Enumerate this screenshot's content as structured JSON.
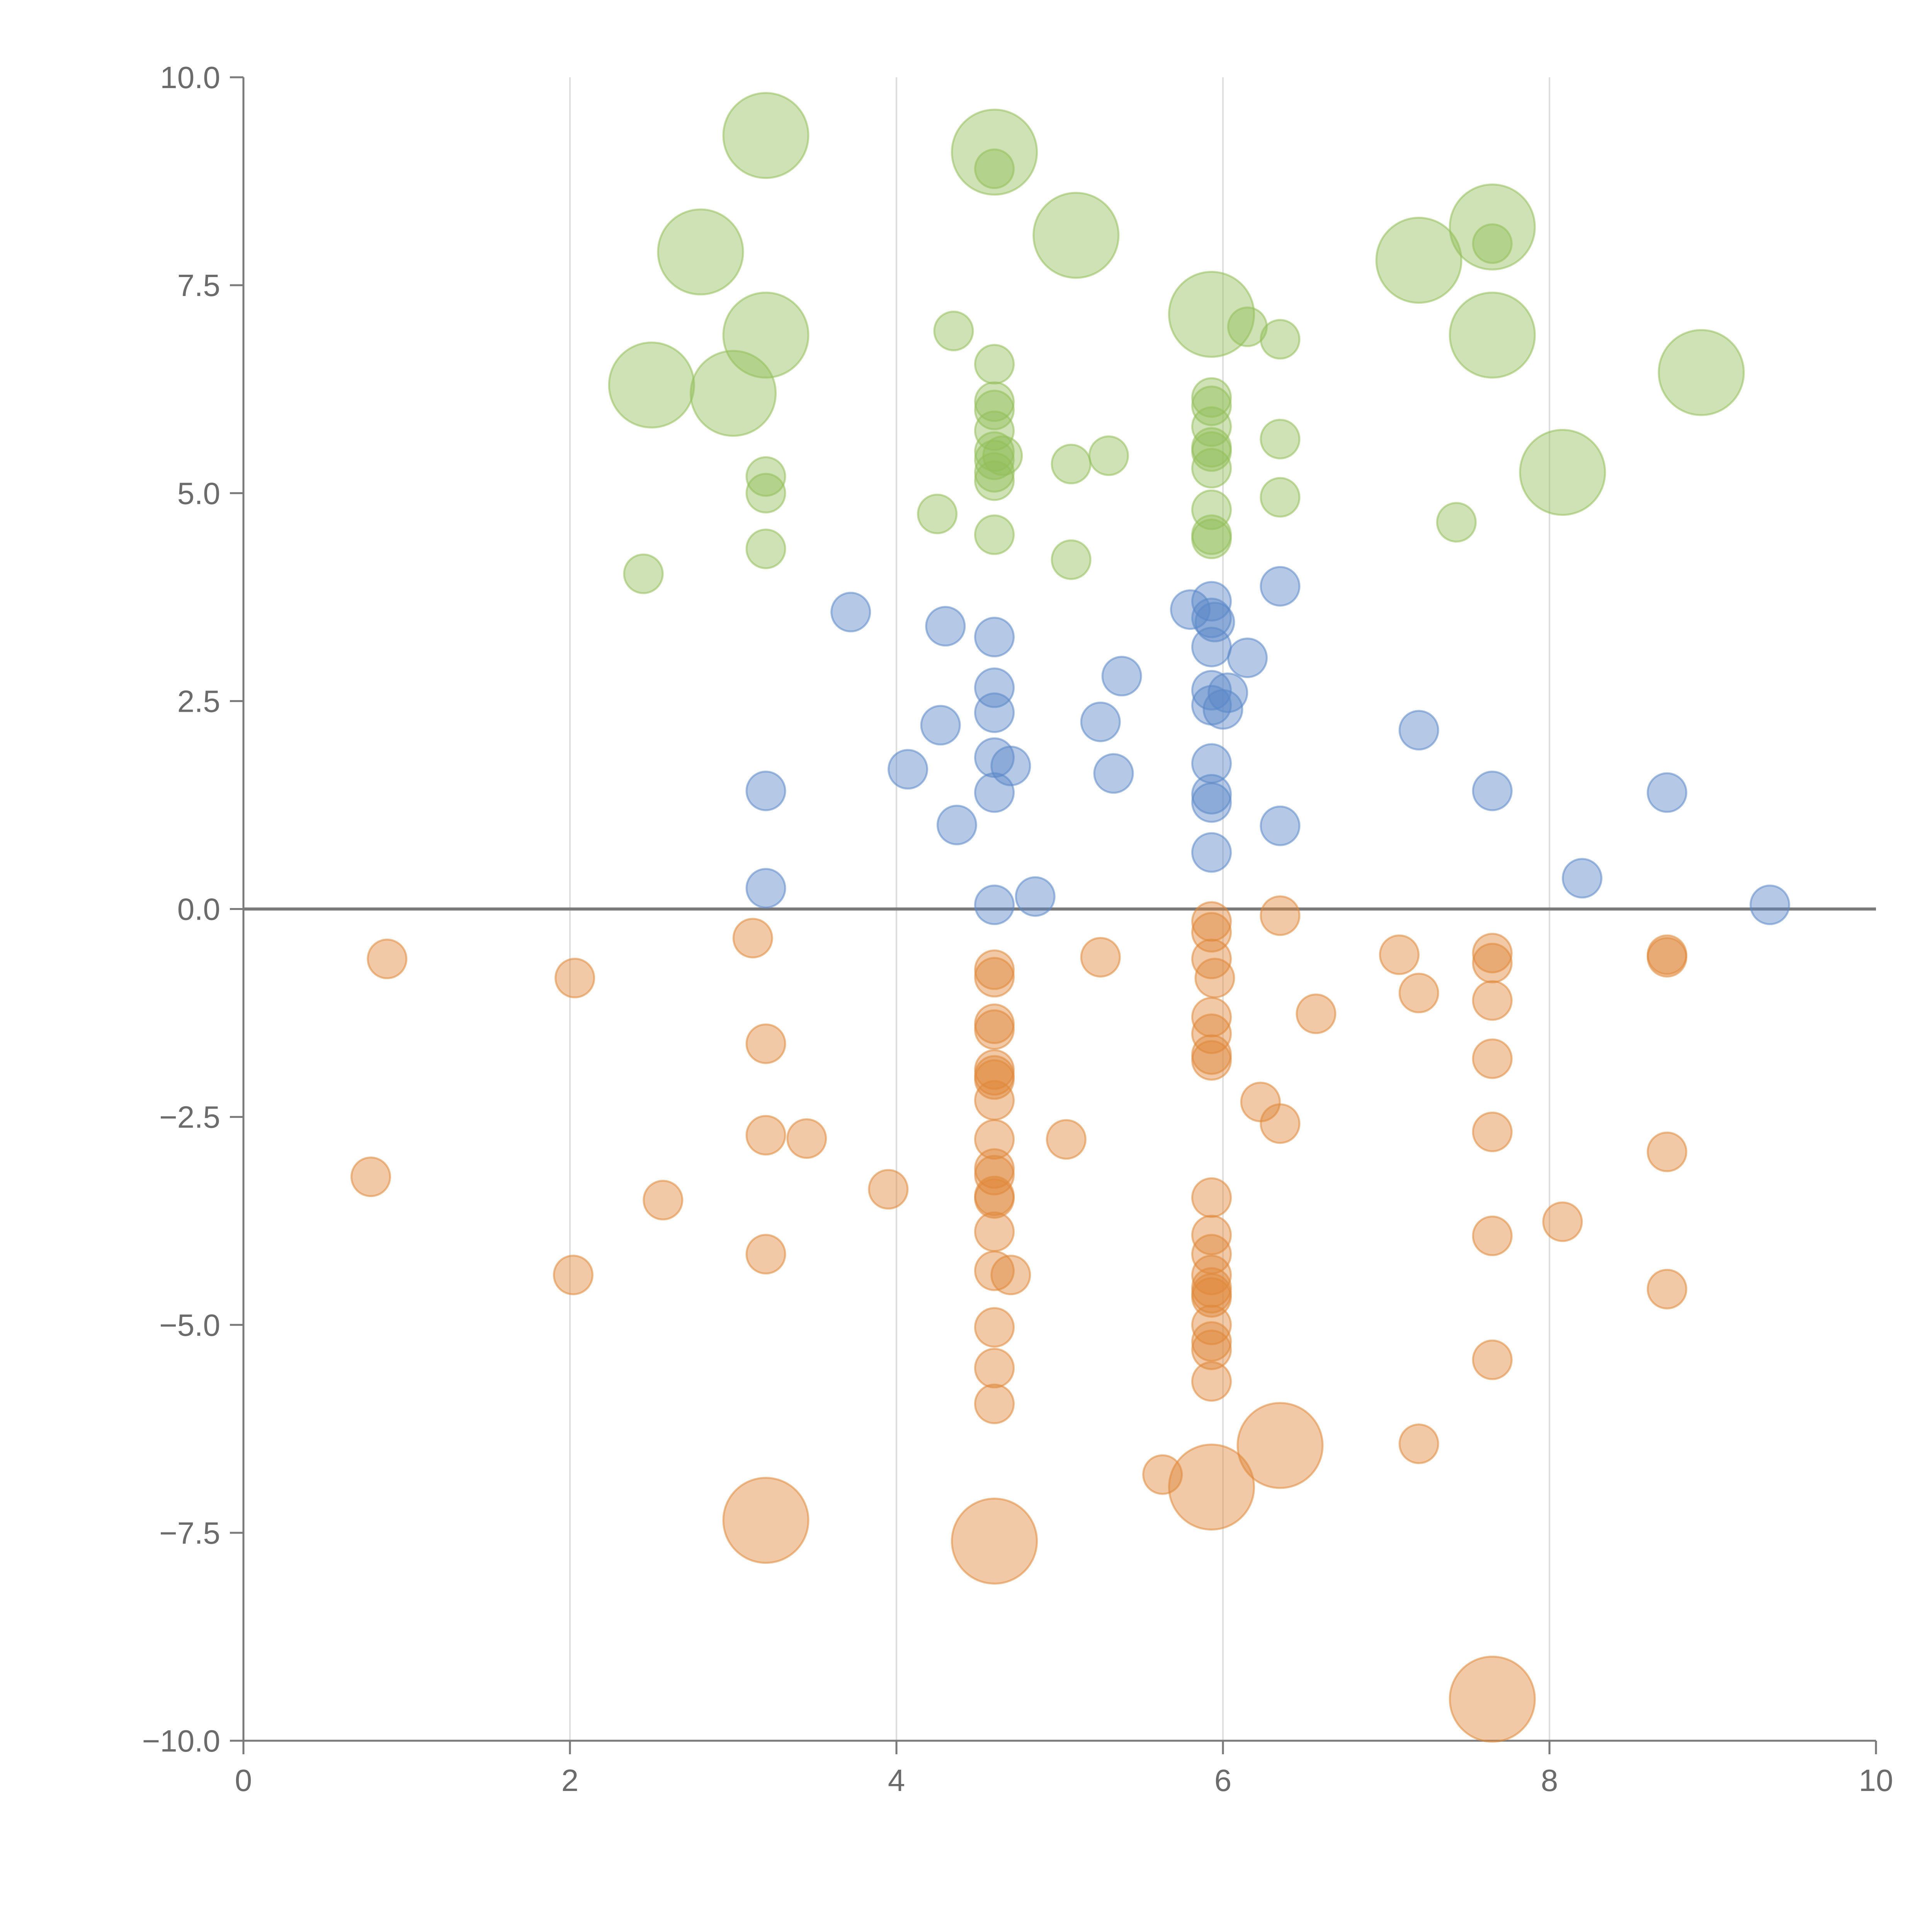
{
  "chart_data": {
    "type": "scatter",
    "title": "",
    "xlabel": "",
    "ylabel": "",
    "xlim": [
      0,
      10
    ],
    "ylim": [
      -10,
      10
    ],
    "grid": "vertical",
    "x_ticks": [
      "0",
      "2",
      "4",
      "6",
      "8",
      "10"
    ],
    "y_ticks": [
      "−10.0",
      "−7.5",
      "−5.0",
      "−2.5",
      "0.0",
      "2.5",
      "5.0",
      "7.5",
      "10.0"
    ],
    "colors": {
      "green": "#93bf5a",
      "blue": "#5b88c8",
      "orange": "#e0883a"
    },
    "series": [
      {
        "name": "green",
        "color": "#93bf5a",
        "points": [
          [
            3.2,
            9.3,
            "l"
          ],
          [
            4.6,
            9.1,
            "l"
          ],
          [
            5.1,
            8.1,
            "l"
          ],
          [
            2.8,
            7.9,
            "l"
          ],
          [
            7.65,
            8.2,
            "l"
          ],
          [
            7.2,
            7.8,
            "l"
          ],
          [
            5.93,
            7.15,
            "l"
          ],
          [
            3.2,
            6.9,
            "l"
          ],
          [
            7.65,
            6.9,
            "l"
          ],
          [
            2.5,
            6.3,
            "l"
          ],
          [
            3.0,
            6.2,
            "l"
          ],
          [
            8.93,
            6.45,
            "l"
          ],
          [
            8.08,
            5.25,
            "l"
          ],
          [
            4.6,
            8.9,
            "s"
          ],
          [
            7.65,
            8.0,
            "s"
          ],
          [
            4.35,
            6.95,
            "s"
          ],
          [
            6.15,
            7.0,
            "s"
          ],
          [
            6.35,
            6.85,
            "s"
          ],
          [
            4.6,
            6.55,
            "s"
          ],
          [
            4.6,
            6.1,
            "s"
          ],
          [
            4.6,
            6.0,
            "s"
          ],
          [
            4.6,
            5.75,
            "s"
          ],
          [
            4.6,
            5.5,
            "s"
          ],
          [
            4.6,
            5.4,
            "s"
          ],
          [
            4.65,
            5.45,
            "s"
          ],
          [
            4.6,
            5.25,
            "s"
          ],
          [
            4.6,
            5.15,
            "s"
          ],
          [
            5.93,
            6.15,
            "s"
          ],
          [
            5.93,
            6.05,
            "s"
          ],
          [
            5.93,
            5.8,
            "s"
          ],
          [
            5.93,
            5.55,
            "s"
          ],
          [
            5.93,
            5.5,
            "s"
          ],
          [
            5.93,
            5.3,
            "s"
          ],
          [
            6.35,
            5.65,
            "s"
          ],
          [
            5.3,
            5.45,
            "s"
          ],
          [
            5.07,
            5.35,
            "s"
          ],
          [
            3.2,
            5.2,
            "s"
          ],
          [
            3.2,
            5.0,
            "s"
          ],
          [
            6.35,
            4.95,
            "s"
          ],
          [
            5.93,
            4.8,
            "s"
          ],
          [
            4.25,
            4.75,
            "s"
          ],
          [
            7.43,
            4.65,
            "s"
          ],
          [
            4.6,
            4.5,
            "s"
          ],
          [
            5.93,
            4.5,
            "s"
          ],
          [
            5.93,
            4.45,
            "s"
          ],
          [
            3.2,
            4.33,
            "s"
          ],
          [
            5.07,
            4.2,
            "s"
          ],
          [
            2.45,
            4.03,
            "s"
          ]
        ]
      },
      {
        "name": "blue",
        "color": "#5b88c8",
        "points": [
          [
            6.35,
            3.88,
            "s"
          ],
          [
            5.93,
            3.7,
            "s"
          ],
          [
            5.8,
            3.6,
            "s"
          ],
          [
            3.72,
            3.57,
            "s"
          ],
          [
            5.93,
            3.5,
            "s"
          ],
          [
            5.95,
            3.45,
            "s"
          ],
          [
            4.3,
            3.4,
            "s"
          ],
          [
            4.6,
            3.27,
            "s"
          ],
          [
            5.93,
            3.15,
            "s"
          ],
          [
            6.15,
            3.02,
            "s"
          ],
          [
            5.38,
            2.8,
            "s"
          ],
          [
            4.6,
            2.66,
            "s"
          ],
          [
            5.93,
            2.63,
            "s"
          ],
          [
            6.03,
            2.6,
            "s"
          ],
          [
            6.0,
            2.4,
            "s"
          ],
          [
            5.93,
            2.45,
            "s"
          ],
          [
            4.6,
            2.36,
            "s"
          ],
          [
            5.25,
            2.25,
            "s"
          ],
          [
            4.27,
            2.21,
            "s"
          ],
          [
            7.2,
            2.15,
            "s"
          ],
          [
            4.6,
            1.82,
            "s"
          ],
          [
            5.93,
            1.75,
            "s"
          ],
          [
            4.7,
            1.72,
            "s"
          ],
          [
            4.07,
            1.68,
            "s"
          ],
          [
            5.33,
            1.63,
            "s"
          ],
          [
            3.2,
            1.42,
            "s"
          ],
          [
            4.6,
            1.4,
            "s"
          ],
          [
            7.65,
            1.42,
            "s"
          ],
          [
            8.72,
            1.4,
            "s"
          ],
          [
            5.93,
            1.38,
            "s"
          ],
          [
            5.93,
            1.28,
            "s"
          ],
          [
            4.37,
            1.01,
            "s"
          ],
          [
            6.35,
            1.0,
            "s"
          ],
          [
            5.93,
            0.68,
            "s"
          ],
          [
            8.2,
            0.37,
            "s"
          ],
          [
            3.2,
            0.25,
            "s"
          ],
          [
            4.85,
            0.15,
            "s"
          ],
          [
            4.6,
            0.05,
            "s"
          ],
          [
            9.35,
            0.05,
            "s"
          ]
        ]
      },
      {
        "name": "orange",
        "color": "#e0883a",
        "points": [
          [
            6.35,
            -6.45,
            "l"
          ],
          [
            5.93,
            -6.95,
            "l"
          ],
          [
            3.2,
            -7.35,
            "l"
          ],
          [
            4.6,
            -7.6,
            "l"
          ],
          [
            7.65,
            -9.5,
            "l"
          ],
          [
            6.35,
            -0.08,
            "s"
          ],
          [
            5.93,
            -0.15,
            "s"
          ],
          [
            5.93,
            -0.28,
            "s"
          ],
          [
            3.12,
            -0.35,
            "s"
          ],
          [
            7.08,
            -0.55,
            "s"
          ],
          [
            7.65,
            -0.53,
            "s"
          ],
          [
            8.72,
            -0.55,
            "s"
          ],
          [
            8.72,
            -0.58,
            "s"
          ],
          [
            5.25,
            -0.58,
            "s"
          ],
          [
            5.93,
            -0.6,
            "s"
          ],
          [
            0.88,
            -0.6,
            "s"
          ],
          [
            7.65,
            -0.65,
            "s"
          ],
          [
            4.6,
            -0.73,
            "s"
          ],
          [
            4.6,
            -0.82,
            "s"
          ],
          [
            2.03,
            -0.83,
            "s"
          ],
          [
            5.95,
            -0.83,
            "s"
          ],
          [
            7.2,
            -1.01,
            "s"
          ],
          [
            7.65,
            -1.1,
            "s"
          ],
          [
            6.57,
            -1.26,
            "s"
          ],
          [
            5.93,
            -1.3,
            "s"
          ],
          [
            4.6,
            -1.38,
            "s"
          ],
          [
            4.6,
            -1.45,
            "s"
          ],
          [
            5.93,
            -1.5,
            "s"
          ],
          [
            3.2,
            -1.62,
            "s"
          ],
          [
            5.93,
            -1.75,
            "s"
          ],
          [
            5.93,
            -1.82,
            "s"
          ],
          [
            7.65,
            -1.8,
            "s"
          ],
          [
            4.6,
            -1.93,
            "s"
          ],
          [
            4.6,
            -2.0,
            "s"
          ],
          [
            4.6,
            -2.05,
            "s"
          ],
          [
            4.6,
            -2.3,
            "s"
          ],
          [
            6.23,
            -2.32,
            "s"
          ],
          [
            6.35,
            -2.58,
            "s"
          ],
          [
            7.65,
            -2.68,
            "s"
          ],
          [
            3.2,
            -2.72,
            "s"
          ],
          [
            3.45,
            -2.76,
            "s"
          ],
          [
            4.6,
            -2.77,
            "s"
          ],
          [
            5.04,
            -2.77,
            "s"
          ],
          [
            8.72,
            -2.92,
            "s"
          ],
          [
            4.6,
            -3.12,
            "s"
          ],
          [
            4.6,
            -3.2,
            "s"
          ],
          [
            0.78,
            -3.22,
            "s"
          ],
          [
            3.95,
            -3.37,
            "s"
          ],
          [
            4.6,
            -3.45,
            "s"
          ],
          [
            4.6,
            -3.48,
            "s"
          ],
          [
            5.93,
            -3.47,
            "s"
          ],
          [
            2.57,
            -3.5,
            "s"
          ],
          [
            8.08,
            -3.76,
            "s"
          ],
          [
            4.6,
            -3.88,
            "s"
          ],
          [
            5.93,
            -3.92,
            "s"
          ],
          [
            7.65,
            -3.93,
            "s"
          ],
          [
            5.93,
            -4.15,
            "s"
          ],
          [
            3.2,
            -4.15,
            "s"
          ],
          [
            4.6,
            -4.35,
            "s"
          ],
          [
            2.02,
            -4.4,
            "s"
          ],
          [
            4.7,
            -4.4,
            "s"
          ],
          [
            5.93,
            -4.4,
            "s"
          ],
          [
            5.93,
            -4.55,
            "s"
          ],
          [
            8.72,
            -4.57,
            "s"
          ],
          [
            5.93,
            -4.62,
            "s"
          ],
          [
            5.93,
            -4.67,
            "s"
          ],
          [
            4.6,
            -5.03,
            "s"
          ],
          [
            5.93,
            -5.0,
            "s"
          ],
          [
            5.93,
            -5.2,
            "s"
          ],
          [
            5.93,
            -5.3,
            "s"
          ],
          [
            7.65,
            -5.42,
            "s"
          ],
          [
            4.6,
            -5.52,
            "s"
          ],
          [
            5.93,
            -5.68,
            "s"
          ],
          [
            4.6,
            -5.95,
            "s"
          ],
          [
            7.2,
            -6.43,
            "s"
          ],
          [
            5.63,
            -6.8,
            "s"
          ]
        ]
      }
    ]
  }
}
